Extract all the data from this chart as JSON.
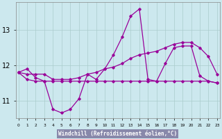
{
  "xlabel": "Windchill (Refroidissement éolien,°C)",
  "bg_color": "#cce8ee",
  "grid_color": "#aacccc",
  "line_color": "#990099",
  "ylim": [
    10.5,
    13.8
  ],
  "yticks": [
    11,
    12,
    13
  ],
  "xlabel_bg": "#8888aa",
  "line1": [
    11.8,
    11.9,
    11.65,
    11.55,
    10.75,
    10.65,
    10.75,
    11.05,
    11.75,
    11.6,
    11.9,
    12.3,
    12.8,
    13.4,
    13.6,
    11.6,
    11.55,
    12.05,
    12.5,
    12.55,
    12.55,
    11.7,
    11.55,
    11.5
  ],
  "line2": [
    11.8,
    11.75,
    11.75,
    11.75,
    11.6,
    11.6,
    11.6,
    11.65,
    11.75,
    11.8,
    11.9,
    11.95,
    12.05,
    12.2,
    12.3,
    12.35,
    12.4,
    12.5,
    12.6,
    12.65,
    12.65,
    12.5,
    12.25,
    11.75
  ],
  "line3": [
    11.8,
    11.6,
    11.55,
    11.55,
    11.55,
    11.55,
    11.55,
    11.55,
    11.55,
    11.55,
    11.55,
    11.55,
    11.55,
    11.55,
    11.55,
    11.55,
    11.55,
    11.55,
    11.55,
    11.55,
    11.55,
    11.55,
    11.55,
    11.5
  ]
}
